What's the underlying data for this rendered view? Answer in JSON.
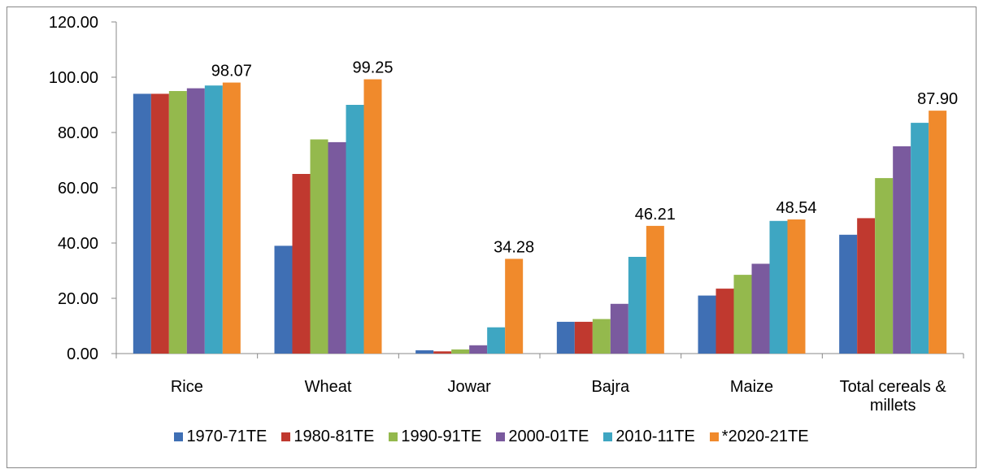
{
  "chart_data": {
    "type": "bar",
    "categories": [
      "Rice",
      "Wheat",
      "Jowar",
      "Bajra",
      "Maize",
      "Total cereals & millets"
    ],
    "series": [
      {
        "name": "1970-71TE",
        "color": "#3f6fb4",
        "values": [
          94,
          39,
          1.2,
          11.5,
          21,
          43
        ]
      },
      {
        "name": "1980-81TE",
        "color": "#c0392f",
        "values": [
          94,
          65,
          0.8,
          11.5,
          23.5,
          49
        ]
      },
      {
        "name": "1990-91TE",
        "color": "#94b94d",
        "values": [
          95,
          77.5,
          1.5,
          12.5,
          28.5,
          63.5
        ]
      },
      {
        "name": "2000-01TE",
        "color": "#7a5a9e",
        "values": [
          96,
          76.5,
          3,
          18,
          32.5,
          75
        ]
      },
      {
        "name": "2010-11TE",
        "color": "#3ea6c2",
        "values": [
          97,
          90,
          9.5,
          35,
          48,
          83.5
        ]
      },
      {
        "name": "*2020-21TE",
        "color": "#f08a2c",
        "values": [
          98.07,
          99.25,
          34.28,
          46.21,
          48.54,
          87.9
        ],
        "value_labels": [
          "98.07",
          "99.25",
          "34.28",
          "46.21",
          "48.54",
          "87.90"
        ]
      }
    ],
    "ylim": [
      0,
      120
    ],
    "yticks": [
      {
        "value": 0,
        "label": "0.00"
      },
      {
        "value": 20,
        "label": "20.00"
      },
      {
        "value": 40,
        "label": "40.00"
      },
      {
        "value": 60,
        "label": "60.00"
      },
      {
        "value": 80,
        "label": "80.00"
      },
      {
        "value": 100,
        "label": "100.00"
      },
      {
        "value": 120,
        "label": "120.00"
      }
    ],
    "legend": "bottom"
  }
}
